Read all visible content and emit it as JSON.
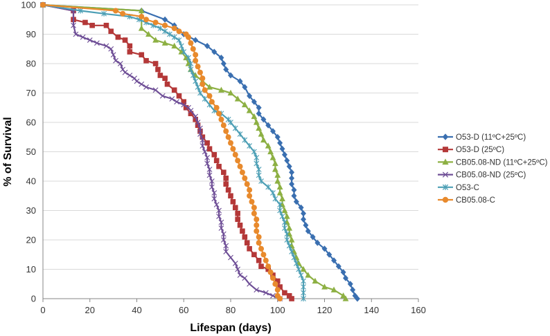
{
  "chart_data": {
    "type": "line",
    "title": "",
    "xlabel": "Lifespan (days)",
    "ylabel": "% of Survival",
    "xlim": [
      0,
      160
    ],
    "ylim": [
      0,
      100
    ],
    "xticks": [
      "0",
      "20",
      "40",
      "60",
      "80",
      "100",
      "120",
      "140",
      "160"
    ],
    "yticks": [
      "0",
      "10",
      "20",
      "30",
      "40",
      "50",
      "60",
      "70",
      "80",
      "90",
      "100"
    ],
    "grid": "horizontal",
    "legend_position": "right",
    "series": [
      {
        "name": "O53-D (11ºC+25ºC)",
        "color": "#3A6FB0",
        "marker": "diamond",
        "points": [
          [
            0,
            100
          ],
          [
            42,
            98
          ],
          [
            52,
            95
          ],
          [
            56,
            93
          ],
          [
            60,
            90
          ],
          [
            65,
            88
          ],
          [
            70,
            86
          ],
          [
            73,
            84
          ],
          [
            76,
            82
          ],
          [
            77,
            80
          ],
          [
            78,
            78
          ],
          [
            80,
            76
          ],
          [
            84,
            74
          ],
          [
            86,
            72
          ],
          [
            88,
            69
          ],
          [
            90,
            67
          ],
          [
            92,
            65
          ],
          [
            92,
            63
          ],
          [
            94,
            61
          ],
          [
            96,
            59
          ],
          [
            98,
            57
          ],
          [
            100,
            55
          ],
          [
            101,
            53
          ],
          [
            102,
            51
          ],
          [
            103,
            49
          ],
          [
            104,
            47
          ],
          [
            105,
            45
          ],
          [
            106,
            43
          ],
          [
            106,
            41
          ],
          [
            106,
            39
          ],
          [
            107,
            37
          ],
          [
            107,
            35
          ],
          [
            108,
            33
          ],
          [
            110,
            31
          ],
          [
            111,
            29
          ],
          [
            111,
            27
          ],
          [
            112,
            25
          ],
          [
            113,
            23
          ],
          [
            115,
            21
          ],
          [
            117,
            19
          ],
          [
            120,
            17
          ],
          [
            122,
            15
          ],
          [
            124,
            13
          ],
          [
            126,
            11
          ],
          [
            128,
            9
          ],
          [
            129,
            7
          ],
          [
            131,
            5
          ],
          [
            132,
            3
          ],
          [
            133,
            1
          ],
          [
            134,
            0
          ]
        ]
      },
      {
        "name": "O53-D (25ºC)",
        "color": "#B43838",
        "marker": "square",
        "points": [
          [
            0,
            100
          ],
          [
            13,
            98
          ],
          [
            13,
            95
          ],
          [
            18,
            94
          ],
          [
            21,
            93
          ],
          [
            27,
            93
          ],
          [
            29,
            91
          ],
          [
            32,
            89
          ],
          [
            35,
            88
          ],
          [
            37,
            86
          ],
          [
            37,
            84
          ],
          [
            42,
            83
          ],
          [
            44,
            81
          ],
          [
            48,
            80
          ],
          [
            49,
            78
          ],
          [
            50,
            76
          ],
          [
            52,
            75
          ],
          [
            53,
            73
          ],
          [
            56,
            71
          ],
          [
            58,
            69
          ],
          [
            60,
            67
          ],
          [
            61,
            65
          ],
          [
            63,
            63
          ],
          [
            65,
            61
          ],
          [
            66,
            59
          ],
          [
            67,
            57
          ],
          [
            68,
            55
          ],
          [
            70,
            53
          ],
          [
            71,
            51
          ],
          [
            73,
            49
          ],
          [
            74,
            47
          ],
          [
            75,
            45
          ],
          [
            77,
            43
          ],
          [
            78,
            41
          ],
          [
            78,
            39
          ],
          [
            79,
            37
          ],
          [
            80,
            35
          ],
          [
            81,
            33
          ],
          [
            82,
            31
          ],
          [
            83,
            29
          ],
          [
            83,
            27
          ],
          [
            84,
            25
          ],
          [
            85,
            23
          ],
          [
            86,
            21
          ],
          [
            87,
            19
          ],
          [
            88,
            17
          ],
          [
            90,
            15
          ],
          [
            92,
            13
          ],
          [
            93,
            11
          ],
          [
            96,
            10
          ],
          [
            98,
            8
          ],
          [
            100,
            6
          ],
          [
            101,
            4
          ],
          [
            103,
            2
          ],
          [
            105,
            1
          ],
          [
            106,
            0
          ]
        ]
      },
      {
        "name": "CB05.08-ND (11ºC+25ºC)",
        "color": "#8DB043",
        "marker": "triangle",
        "points": [
          [
            0,
            100
          ],
          [
            42,
            98
          ],
          [
            42,
            92
          ],
          [
            45,
            90
          ],
          [
            48,
            88
          ],
          [
            52,
            87
          ],
          [
            56,
            86
          ],
          [
            59,
            84
          ],
          [
            61,
            82
          ],
          [
            62,
            80
          ],
          [
            63,
            78
          ],
          [
            65,
            76
          ],
          [
            68,
            74
          ],
          [
            71,
            72
          ],
          [
            76,
            71
          ],
          [
            80,
            70
          ],
          [
            83,
            68
          ],
          [
            86,
            66
          ],
          [
            88,
            64
          ],
          [
            90,
            62
          ],
          [
            91,
            60
          ],
          [
            92,
            58
          ],
          [
            93,
            56
          ],
          [
            94,
            54
          ],
          [
            96,
            52
          ],
          [
            97,
            50
          ],
          [
            98,
            48
          ],
          [
            99,
            46
          ],
          [
            99,
            44
          ],
          [
            100,
            42
          ],
          [
            100,
            40
          ],
          [
            101,
            38
          ],
          [
            101,
            36
          ],
          [
            102,
            34
          ],
          [
            102,
            32
          ],
          [
            103,
            30
          ],
          [
            104,
            28
          ],
          [
            104,
            26
          ],
          [
            105,
            24
          ],
          [
            105,
            22
          ],
          [
            106,
            20
          ],
          [
            106,
            18
          ],
          [
            107,
            16
          ],
          [
            108,
            14
          ],
          [
            109,
            12
          ],
          [
            111,
            10
          ],
          [
            113,
            8
          ],
          [
            116,
            6
          ],
          [
            120,
            4
          ],
          [
            124,
            3
          ],
          [
            128,
            1
          ],
          [
            129,
            0
          ]
        ]
      },
      {
        "name": "CB05.08-ND (25ºC)",
        "color": "#6E4E96",
        "marker": "x",
        "points": [
          [
            0,
            100
          ],
          [
            13,
            98
          ],
          [
            13,
            93
          ],
          [
            14,
            90
          ],
          [
            17,
            89
          ],
          [
            20,
            88
          ],
          [
            23,
            87
          ],
          [
            27,
            86
          ],
          [
            29,
            85
          ],
          [
            30,
            83
          ],
          [
            31,
            81
          ],
          [
            33,
            80
          ],
          [
            34,
            78
          ],
          [
            35,
            77
          ],
          [
            37,
            76
          ],
          [
            39,
            75
          ],
          [
            40,
            74
          ],
          [
            42,
            73
          ],
          [
            44,
            72
          ],
          [
            48,
            71
          ],
          [
            51,
            69
          ],
          [
            55,
            68
          ],
          [
            57,
            67
          ],
          [
            60,
            66
          ],
          [
            62,
            65
          ],
          [
            63,
            64
          ],
          [
            65,
            62
          ],
          [
            66,
            60
          ],
          [
            67,
            58
          ],
          [
            67,
            56
          ],
          [
            68,
            54
          ],
          [
            68,
            52
          ],
          [
            69,
            50
          ],
          [
            70,
            48
          ],
          [
            70,
            46
          ],
          [
            71,
            44
          ],
          [
            71,
            42
          ],
          [
            72,
            40
          ],
          [
            72,
            38
          ],
          [
            73,
            36
          ],
          [
            73,
            34
          ],
          [
            74,
            32
          ],
          [
            75,
            30
          ],
          [
            75,
            28
          ],
          [
            76,
            26
          ],
          [
            76,
            24
          ],
          [
            77,
            22
          ],
          [
            77,
            20
          ],
          [
            78,
            18
          ],
          [
            78,
            16
          ],
          [
            80,
            14
          ],
          [
            82,
            12
          ],
          [
            83,
            10
          ],
          [
            84,
            8
          ],
          [
            86,
            7
          ],
          [
            88,
            5
          ],
          [
            91,
            3
          ],
          [
            95,
            2
          ],
          [
            98,
            1
          ],
          [
            101,
            0
          ]
        ]
      },
      {
        "name": "O53-C",
        "color": "#4D9FB5",
        "marker": "asterisk",
        "points": [
          [
            0,
            100
          ],
          [
            16,
            98
          ],
          [
            26,
            97
          ],
          [
            37,
            96
          ],
          [
            41,
            95
          ],
          [
            44,
            94
          ],
          [
            47,
            93
          ],
          [
            50,
            92
          ],
          [
            52,
            91
          ],
          [
            54,
            90
          ],
          [
            56,
            89
          ],
          [
            58,
            88
          ],
          [
            59,
            86
          ],
          [
            60,
            84
          ],
          [
            62,
            82
          ],
          [
            63,
            80
          ],
          [
            63,
            78
          ],
          [
            64,
            76
          ],
          [
            65,
            74
          ],
          [
            66,
            72
          ],
          [
            67,
            70
          ],
          [
            69,
            68
          ],
          [
            71,
            66
          ],
          [
            73,
            64
          ],
          [
            76,
            63
          ],
          [
            79,
            61
          ],
          [
            80,
            60
          ],
          [
            82,
            58
          ],
          [
            84,
            56
          ],
          [
            86,
            54
          ],
          [
            88,
            52
          ],
          [
            90,
            50
          ],
          [
            91,
            48
          ],
          [
            91,
            46
          ],
          [
            92,
            44
          ],
          [
            92,
            42
          ],
          [
            93,
            40
          ],
          [
            96,
            38
          ],
          [
            98,
            36
          ],
          [
            99,
            34
          ],
          [
            101,
            32
          ],
          [
            101,
            30
          ],
          [
            102,
            28
          ],
          [
            103,
            26
          ],
          [
            103,
            24
          ],
          [
            104,
            22
          ],
          [
            104,
            20
          ],
          [
            105,
            18
          ],
          [
            106,
            16
          ],
          [
            107,
            14
          ],
          [
            108,
            12
          ],
          [
            109,
            10
          ],
          [
            110,
            8
          ],
          [
            111,
            6
          ],
          [
            111,
            4
          ],
          [
            111,
            2
          ],
          [
            111,
            0
          ]
        ]
      },
      {
        "name": "CB05.08-C",
        "color": "#E88A2D",
        "marker": "circle",
        "points": [
          [
            0,
            100
          ],
          [
            31,
            98
          ],
          [
            34,
            97
          ],
          [
            42,
            96
          ],
          [
            44,
            95
          ],
          [
            48,
            94
          ],
          [
            52,
            93
          ],
          [
            56,
            92
          ],
          [
            58,
            91
          ],
          [
            61,
            90
          ],
          [
            62,
            89
          ],
          [
            63,
            87
          ],
          [
            64,
            85
          ],
          [
            65,
            83
          ],
          [
            65,
            81
          ],
          [
            66,
            79
          ],
          [
            67,
            77
          ],
          [
            68,
            75
          ],
          [
            68,
            73
          ],
          [
            69,
            71
          ],
          [
            71,
            69
          ],
          [
            72,
            67
          ],
          [
            74,
            65
          ],
          [
            75,
            63
          ],
          [
            76,
            61
          ],
          [
            77,
            59
          ],
          [
            78,
            57
          ],
          [
            79,
            55
          ],
          [
            80,
            53
          ],
          [
            81,
            51
          ],
          [
            82,
            49
          ],
          [
            83,
            47
          ],
          [
            84,
            45
          ],
          [
            85,
            43
          ],
          [
            86,
            41
          ],
          [
            87,
            39
          ],
          [
            88,
            37
          ],
          [
            88,
            35
          ],
          [
            89,
            33
          ],
          [
            90,
            31
          ],
          [
            90,
            29
          ],
          [
            91,
            27
          ],
          [
            91,
            25
          ],
          [
            91,
            23
          ],
          [
            92,
            21
          ],
          [
            92,
            19
          ],
          [
            93,
            17
          ],
          [
            94,
            15
          ],
          [
            95,
            13
          ],
          [
            96,
            11
          ],
          [
            97,
            9
          ],
          [
            98,
            7
          ],
          [
            99,
            5
          ],
          [
            100,
            3
          ],
          [
            100,
            1
          ],
          [
            101,
            0
          ]
        ]
      }
    ]
  }
}
